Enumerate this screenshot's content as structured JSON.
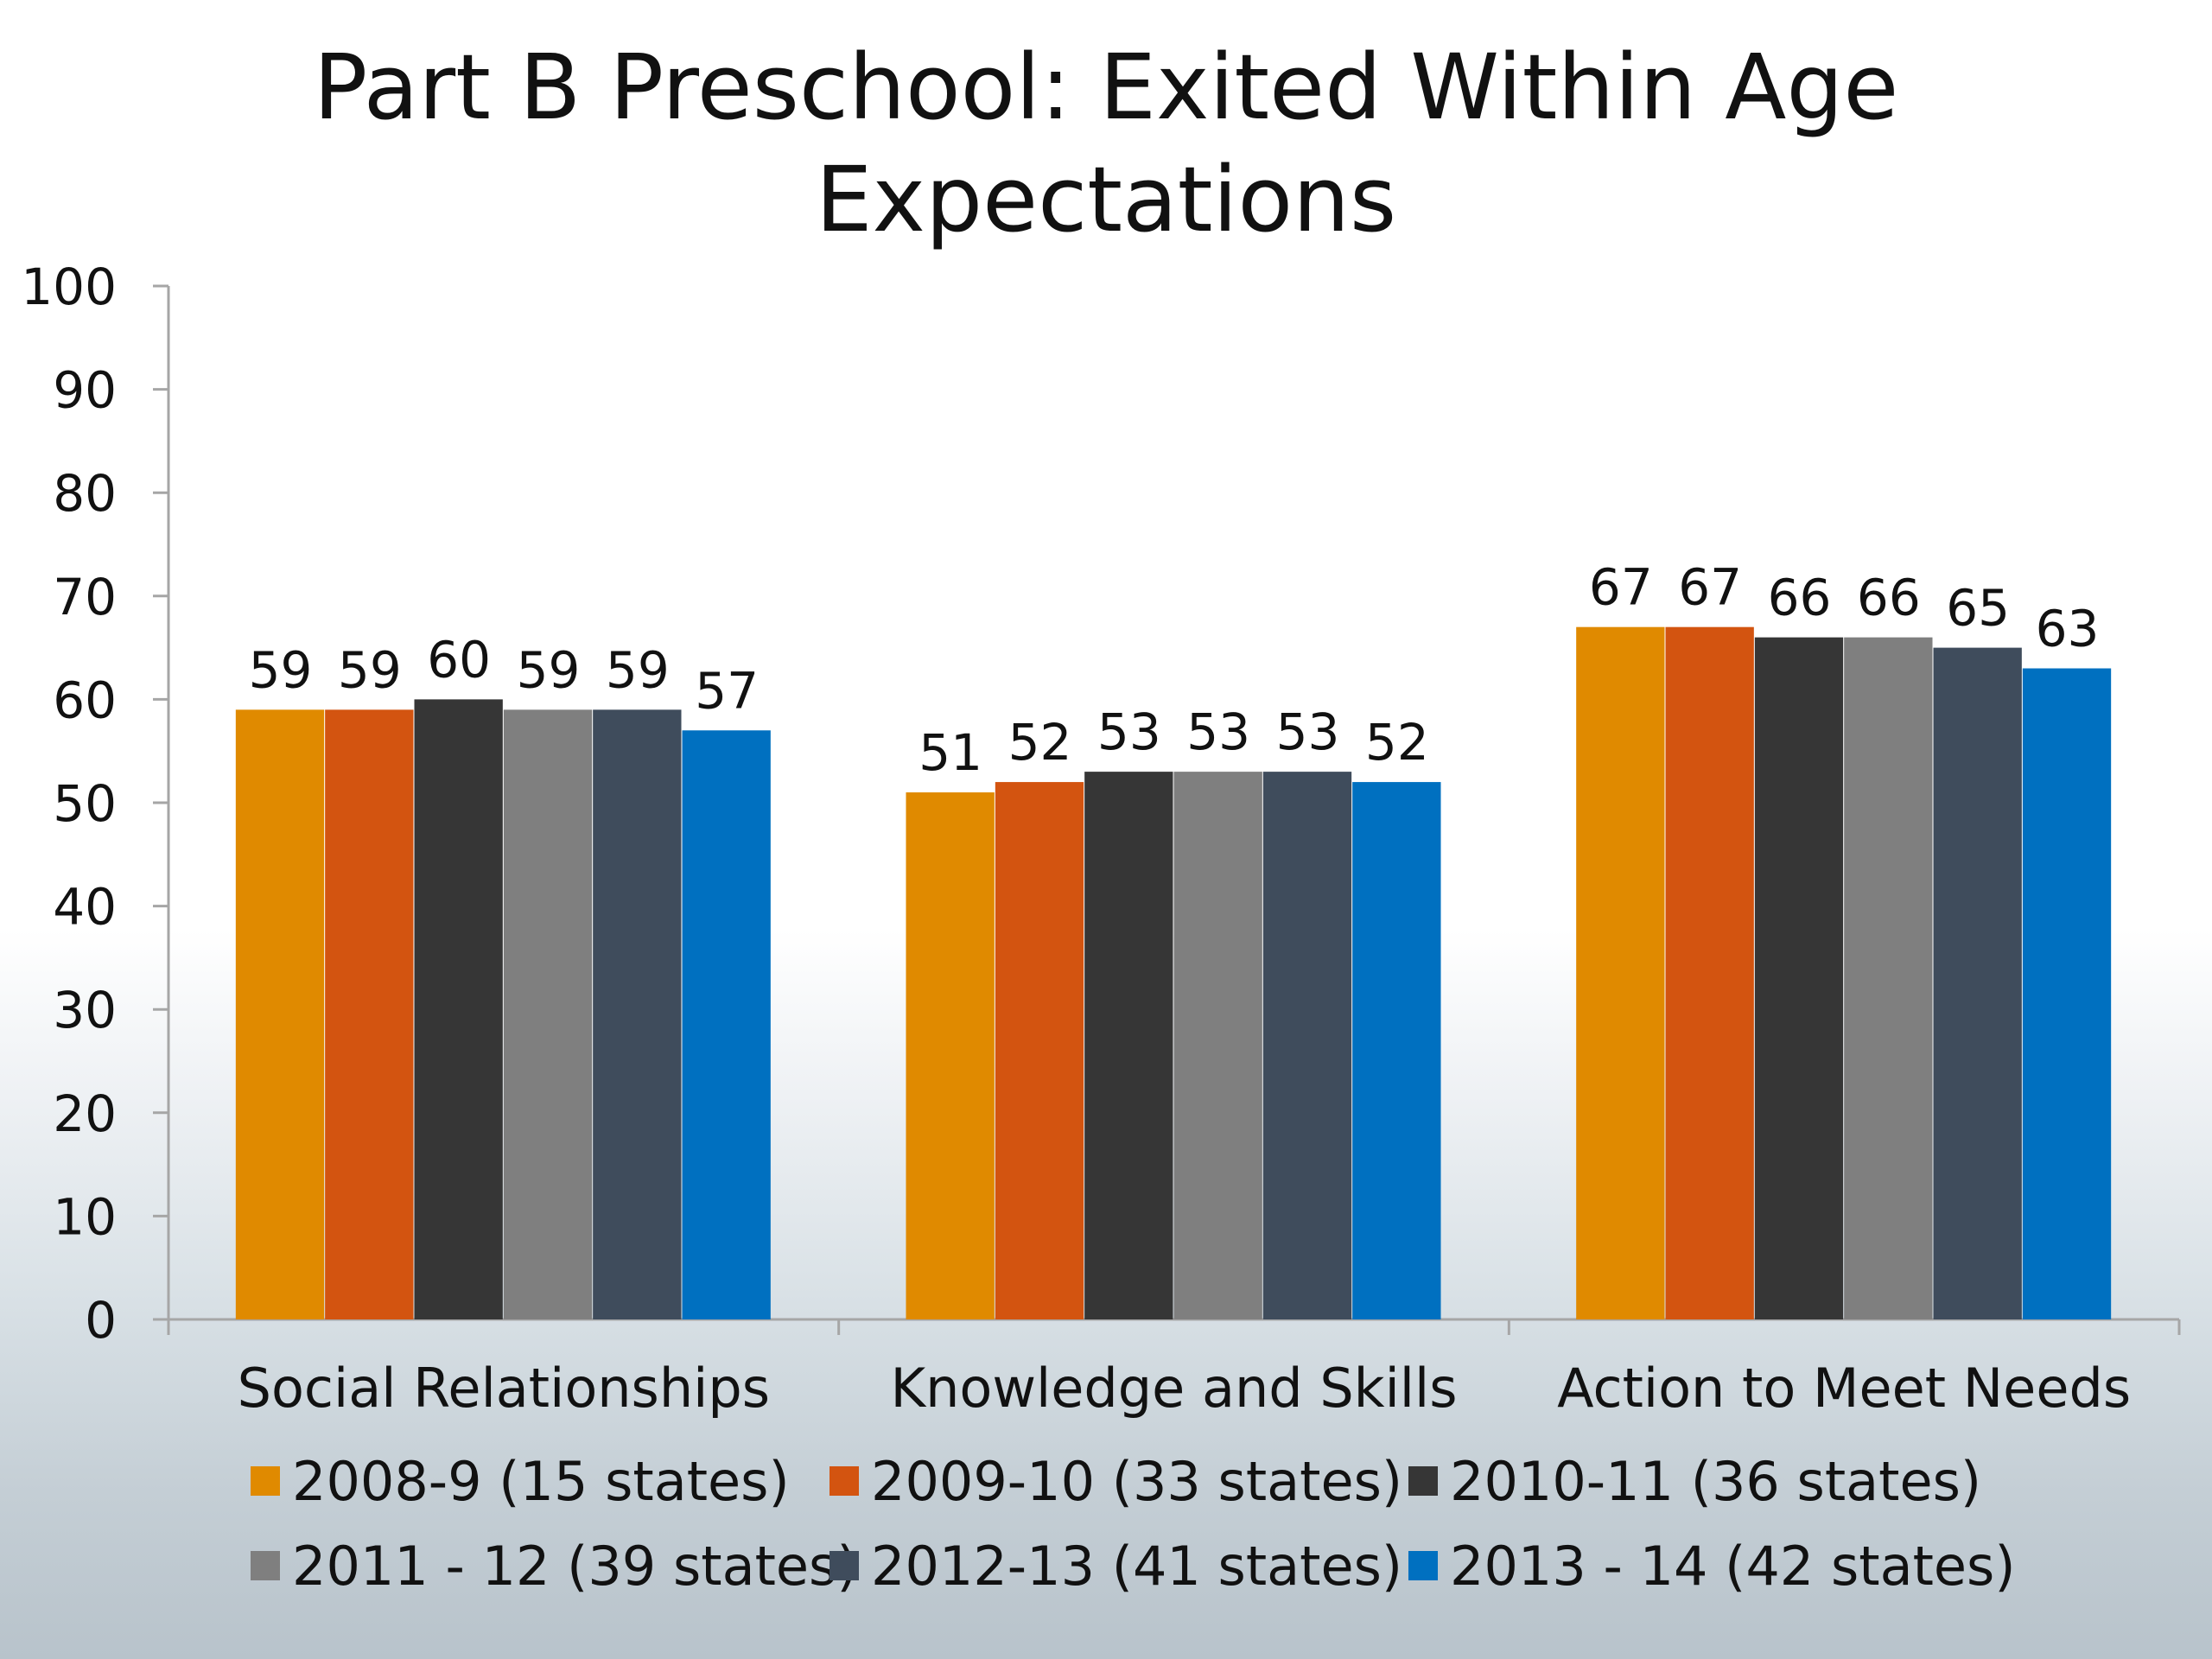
{
  "chart_data": {
    "type": "bar",
    "title": "Part B Preschool: Exited Within Age Expectations",
    "title_lines": [
      "Part B Preschool: Exited Within Age",
      "Expectations"
    ],
    "categories": [
      "Social Relationships",
      "Knowledge and Skills",
      "Action to Meet Needs"
    ],
    "series": [
      {
        "name": "2008-9 (15 states)",
        "color": "#e08a00",
        "values": [
          59,
          51,
          67
        ]
      },
      {
        "name": "2009-10 (33 states)",
        "color": "#d35410",
        "values": [
          59,
          52,
          67
        ]
      },
      {
        "name": "2010-11 (36 states)",
        "color": "#363636",
        "values": [
          60,
          53,
          66
        ]
      },
      {
        "name": "2011 - 12 (39 states)",
        "color": "#7f7f7f",
        "values": [
          59,
          53,
          66
        ]
      },
      {
        "name": "2012-13 (41 states)",
        "color": "#3f4c5c",
        "values": [
          59,
          53,
          65
        ]
      },
      {
        "name": "2013 - 14 (42 states)",
        "color": "#0070c0",
        "values": [
          57,
          52,
          63
        ]
      }
    ],
    "ylim": [
      0,
      100
    ],
    "yticks": [
      0,
      10,
      20,
      30,
      40,
      50,
      60,
      70,
      80,
      90,
      100
    ],
    "xlabel": "",
    "ylabel": "",
    "grid": false,
    "legend_position": "bottom",
    "data_labels": true
  }
}
